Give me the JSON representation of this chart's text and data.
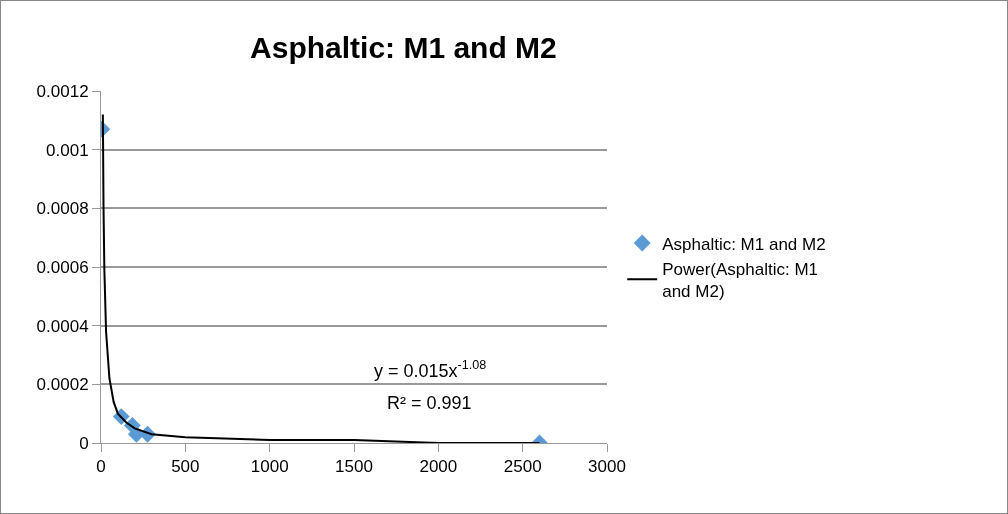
{
  "chart_data": {
    "type": "scatter",
    "title": "Asphaltic: M1 and M2",
    "series": [
      {
        "name": "Asphaltic: M1 and M2",
        "color": "#5b9bd5",
        "marker": "diamond",
        "x": [
          5,
          120,
          186,
          210,
          276,
          2600
        ],
        "values": [
          0.00107,
          9e-05,
          6e-05,
          3e-05,
          3e-05,
          0
        ]
      },
      {
        "name": "Power(Asphaltic: M1 and M2)",
        "type": "line",
        "color": "#000000",
        "marker": "none",
        "x": [
          11,
          15,
          20,
          30,
          50,
          75,
          100,
          150,
          200,
          300,
          500,
          1000,
          1500,
          2000,
          2600
        ],
        "values": [
          0.00112,
          0.0008,
          0.00059,
          0.00038,
          0.00022,
          0.00014,
          0.0001,
          7e-05,
          5e-05,
          3e-05,
          2e-05,
          1e-05,
          1e-05,
          0,
          0
        ]
      }
    ],
    "xlim": [
      0,
      3000
    ],
    "xticks": [
      0,
      500,
      1000,
      1500,
      2000,
      2500,
      3000
    ],
    "ylim": [
      0,
      0.0012
    ],
    "yticks": [
      0,
      0.0002,
      0.0004,
      0.0006,
      0.0008,
      0.001,
      0.0012
    ],
    "grid": "y",
    "legend": "right",
    "annotations": [
      "y = 0.015x$^{-1.08}$",
      "R² = 0.991"
    ]
  }
}
